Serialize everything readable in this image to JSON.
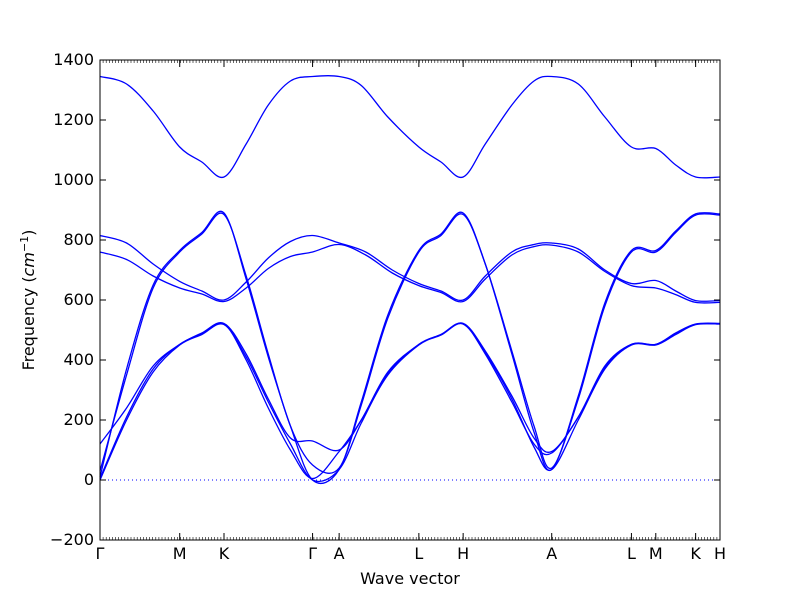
{
  "chart_data": {
    "type": "line",
    "title": "",
    "xlabel": "Wave vector",
    "ylabel": "Frequency ($cm^{-1}$)",
    "ylabel_prefix": "Frequency (",
    "ylabel_unit": "cm",
    "ylabel_exponent": "−1",
    "ylabel_suffix": ")",
    "ylim": [
      -200,
      1400
    ],
    "xlim": [
      0,
      14
    ],
    "grid": false,
    "zero_line": 0,
    "color": "#0000ff",
    "yticks": [
      -200,
      0,
      200,
      400,
      600,
      800,
      1000,
      1200,
      1400
    ],
    "q_points": [
      {
        "label": "Γ",
        "x": 0
      },
      {
        "label": "M",
        "x": 1.8
      },
      {
        "label": "K",
        "x": 2.8
      },
      {
        "label": "Γ",
        "x": 4.8
      },
      {
        "label": "A",
        "x": 5.4
      },
      {
        "label": "L",
        "x": 7.2
      },
      {
        "label": "H",
        "x": 8.2
      },
      {
        "label": "A",
        "x": 10.2
      },
      {
        "label": "L",
        "x": 12.0
      },
      {
        "label": "M",
        "x": 12.55
      },
      {
        "label": "K",
        "x": 13.45
      },
      {
        "label": "H",
        "x": 14.0
      }
    ],
    "series": [
      {
        "values": [
          [
            0,
            1345
          ],
          [
            0.6,
            1320
          ],
          [
            1.2,
            1230
          ],
          [
            1.8,
            1110
          ],
          [
            2.3,
            1060
          ],
          [
            2.8,
            1010
          ],
          [
            3.3,
            1120
          ],
          [
            3.8,
            1250
          ],
          [
            4.3,
            1330
          ],
          [
            4.8,
            1345
          ],
          [
            5.4,
            1345
          ],
          [
            5.9,
            1315
          ],
          [
            6.5,
            1210
          ],
          [
            7.2,
            1110
          ],
          [
            7.7,
            1060
          ],
          [
            8.2,
            1010
          ],
          [
            8.7,
            1120
          ],
          [
            9.3,
            1250
          ],
          [
            9.8,
            1330
          ],
          [
            10.2,
            1345
          ],
          [
            10.8,
            1320
          ],
          [
            11.4,
            1210
          ],
          [
            12.0,
            1110
          ],
          [
            12.55,
            1105
          ],
          [
            13.0,
            1050
          ],
          [
            13.45,
            1010
          ],
          [
            14.0,
            1010
          ]
        ]
      },
      {
        "values": [
          [
            0,
            10
          ],
          [
            0.6,
            370
          ],
          [
            1.2,
            650
          ],
          [
            1.8,
            765
          ],
          [
            2.3,
            825
          ],
          [
            2.8,
            890
          ],
          [
            3.3,
            670
          ],
          [
            3.8,
            410
          ],
          [
            4.3,
            180
          ],
          [
            4.8,
            0
          ],
          [
            5.4,
            35
          ],
          [
            5.9,
            260
          ],
          [
            6.5,
            550
          ],
          [
            7.2,
            765
          ],
          [
            7.7,
            820
          ],
          [
            8.2,
            890
          ],
          [
            8.7,
            720
          ],
          [
            9.3,
            420
          ],
          [
            9.8,
            160
          ],
          [
            10.2,
            35
          ],
          [
            10.8,
            280
          ],
          [
            11.4,
            590
          ],
          [
            12.0,
            765
          ],
          [
            12.55,
            765
          ],
          [
            13.0,
            830
          ],
          [
            13.45,
            887
          ],
          [
            14.0,
            887
          ]
        ]
      },
      {
        "values": [
          [
            0,
            30
          ],
          [
            0.6,
            350
          ],
          [
            1.2,
            640
          ],
          [
            1.8,
            760
          ],
          [
            2.3,
            820
          ],
          [
            2.8,
            885
          ],
          [
            3.3,
            680
          ],
          [
            3.8,
            420
          ],
          [
            4.3,
            180
          ],
          [
            4.8,
            50
          ],
          [
            5.4,
            40
          ],
          [
            5.9,
            250
          ],
          [
            6.5,
            540
          ],
          [
            7.2,
            760
          ],
          [
            7.7,
            815
          ],
          [
            8.2,
            885
          ],
          [
            8.7,
            720
          ],
          [
            9.3,
            430
          ],
          [
            9.8,
            180
          ],
          [
            10.2,
            40
          ],
          [
            10.8,
            270
          ],
          [
            11.4,
            580
          ],
          [
            12.0,
            760
          ],
          [
            12.55,
            760
          ],
          [
            13.0,
            825
          ],
          [
            13.45,
            883
          ],
          [
            14.0,
            883
          ]
        ]
      },
      {
        "values": [
          [
            0,
            815
          ],
          [
            0.6,
            790
          ],
          [
            1.2,
            720
          ],
          [
            1.8,
            662
          ],
          [
            2.3,
            630
          ],
          [
            2.8,
            600
          ],
          [
            3.3,
            660
          ],
          [
            3.8,
            740
          ],
          [
            4.3,
            795
          ],
          [
            4.8,
            815
          ],
          [
            5.4,
            790
          ],
          [
            6.0,
            760
          ],
          [
            6.6,
            700
          ],
          [
            7.2,
            655
          ],
          [
            7.7,
            630
          ],
          [
            8.2,
            600
          ],
          [
            8.7,
            680
          ],
          [
            9.3,
            760
          ],
          [
            9.8,
            785
          ],
          [
            10.2,
            790
          ],
          [
            10.8,
            770
          ],
          [
            11.4,
            700
          ],
          [
            12.0,
            655
          ],
          [
            12.55,
            665
          ],
          [
            13.0,
            630
          ],
          [
            13.45,
            598
          ],
          [
            14.0,
            598
          ]
        ]
      },
      {
        "values": [
          [
            0,
            760
          ],
          [
            0.6,
            735
          ],
          [
            1.2,
            680
          ],
          [
            1.8,
            640
          ],
          [
            2.3,
            620
          ],
          [
            2.8,
            595
          ],
          [
            3.3,
            640
          ],
          [
            3.8,
            705
          ],
          [
            4.3,
            745
          ],
          [
            4.8,
            760
          ],
          [
            5.4,
            785
          ],
          [
            6.0,
            750
          ],
          [
            6.6,
            690
          ],
          [
            7.2,
            648
          ],
          [
            7.7,
            625
          ],
          [
            8.2,
            595
          ],
          [
            8.7,
            670
          ],
          [
            9.3,
            750
          ],
          [
            9.8,
            778
          ],
          [
            10.2,
            783
          ],
          [
            10.8,
            760
          ],
          [
            11.4,
            695
          ],
          [
            12.0,
            648
          ],
          [
            12.55,
            640
          ],
          [
            13.0,
            618
          ],
          [
            13.45,
            592
          ],
          [
            14.0,
            592
          ]
        ]
      },
      {
        "values": [
          [
            0,
            120
          ],
          [
            0.6,
            240
          ],
          [
            1.2,
            380
          ],
          [
            1.8,
            452
          ],
          [
            2.3,
            490
          ],
          [
            2.8,
            522
          ],
          [
            3.3,
            420
          ],
          [
            3.8,
            270
          ],
          [
            4.3,
            140
          ],
          [
            4.8,
            130
          ],
          [
            5.4,
            100
          ],
          [
            5.9,
            200
          ],
          [
            6.5,
            360
          ],
          [
            7.2,
            452
          ],
          [
            7.7,
            485
          ],
          [
            8.2,
            522
          ],
          [
            8.7,
            430
          ],
          [
            9.3,
            280
          ],
          [
            9.8,
            140
          ],
          [
            10.2,
            95
          ],
          [
            10.8,
            210
          ],
          [
            11.4,
            380
          ],
          [
            12.0,
            452
          ],
          [
            12.55,
            452
          ],
          [
            13.0,
            490
          ],
          [
            13.45,
            520
          ],
          [
            14.0,
            522
          ]
        ]
      },
      {
        "values": [
          [
            0,
            0
          ],
          [
            0.6,
            200
          ],
          [
            1.2,
            360
          ],
          [
            1.8,
            450
          ],
          [
            2.3,
            485
          ],
          [
            2.8,
            518
          ],
          [
            3.3,
            410
          ],
          [
            3.8,
            260
          ],
          [
            4.3,
            120
          ],
          [
            4.8,
            0
          ],
          [
            5.4,
            35
          ],
          [
            5.9,
            190
          ],
          [
            6.5,
            350
          ],
          [
            7.2,
            450
          ],
          [
            7.7,
            483
          ],
          [
            8.2,
            520
          ],
          [
            8.7,
            425
          ],
          [
            9.3,
            270
          ],
          [
            9.8,
            110
          ],
          [
            10.2,
            35
          ],
          [
            10.8,
            200
          ],
          [
            11.4,
            370
          ],
          [
            12.0,
            450
          ],
          [
            12.55,
            450
          ],
          [
            13.0,
            485
          ],
          [
            13.45,
            518
          ],
          [
            14.0,
            520
          ]
        ]
      },
      {
        "values": [
          [
            0,
            5
          ],
          [
            0.6,
            210
          ],
          [
            1.2,
            370
          ],
          [
            1.8,
            452
          ],
          [
            2.3,
            487
          ],
          [
            2.8,
            520
          ],
          [
            3.3,
            400
          ],
          [
            3.8,
            240
          ],
          [
            4.3,
            100
          ],
          [
            4.8,
            5
          ],
          [
            5.4,
            95
          ],
          [
            5.9,
            200
          ],
          [
            6.5,
            355
          ],
          [
            7.2,
            452
          ],
          [
            7.7,
            485
          ],
          [
            8.2,
            520
          ],
          [
            8.7,
            420
          ],
          [
            9.3,
            260
          ],
          [
            9.8,
            120
          ],
          [
            10.2,
            90
          ],
          [
            10.8,
            210
          ],
          [
            11.4,
            375
          ],
          [
            12.0,
            452
          ],
          [
            12.55,
            452
          ],
          [
            13.0,
            487
          ],
          [
            13.45,
            519
          ],
          [
            14.0,
            520
          ]
        ]
      }
    ]
  }
}
